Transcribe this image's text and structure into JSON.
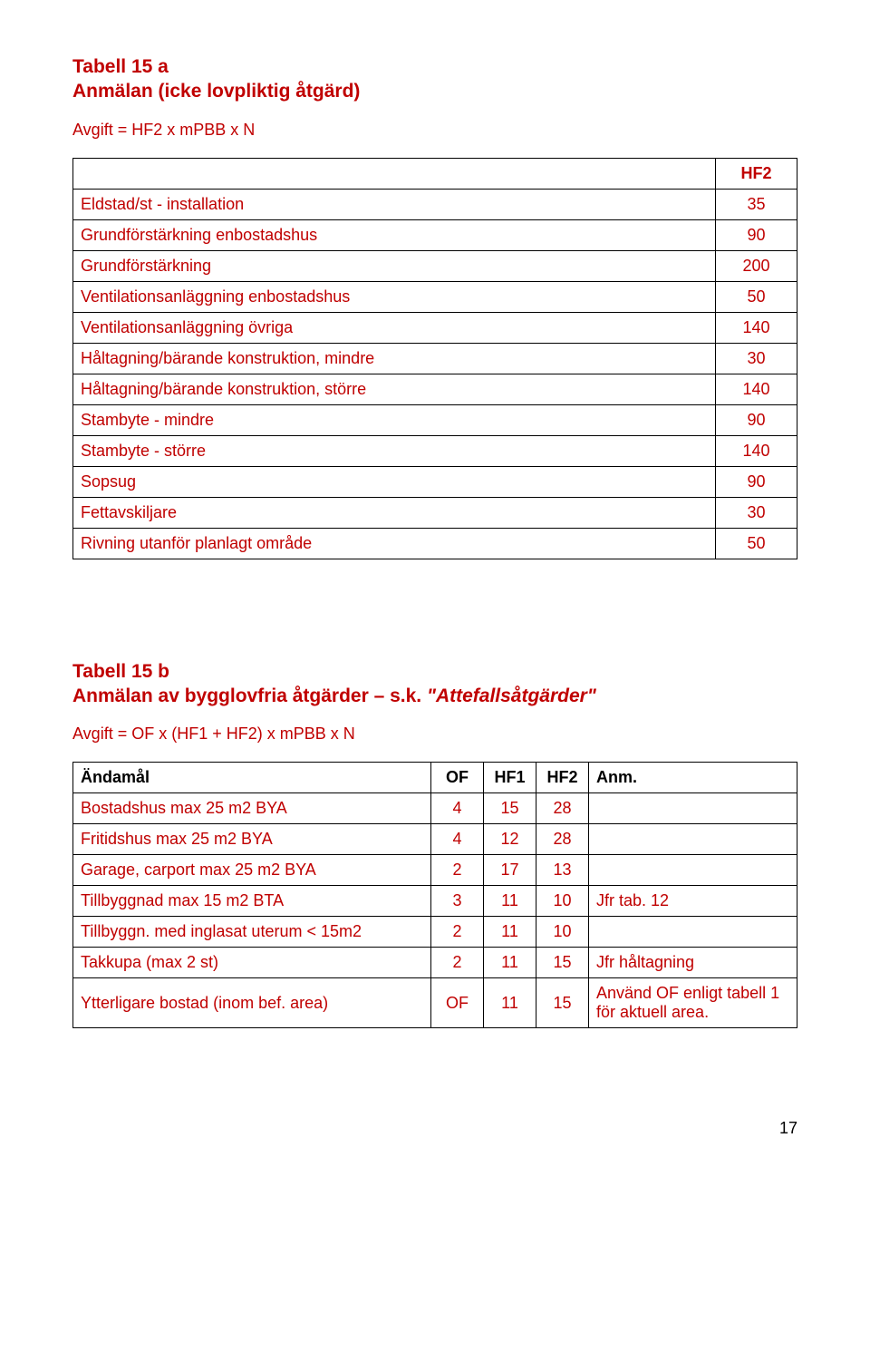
{
  "colors": {
    "accent": "#c00000",
    "text": "#000000",
    "border": "#000000",
    "background": "#ffffff"
  },
  "typography": {
    "font_family": "Arial, Helvetica, sans-serif",
    "heading_fontsize_pt": 16,
    "body_fontsize_pt": 13.5
  },
  "section_a": {
    "title": "Tabell 15 a",
    "subtitle": "Anmälan (icke lovpliktig åtgärd)",
    "formula": "Avgift = HF2 x mPBB x N",
    "table": {
      "header_col2": "HF2",
      "rows": [
        {
          "label": "Eldstad/st - installation",
          "value": "35"
        },
        {
          "label": "Grundförstärkning enbostadshus",
          "value": "90"
        },
        {
          "label": "Grundförstärkning",
          "value": "200"
        },
        {
          "label": "Ventilationsanläggning enbostadshus",
          "value": "50"
        },
        {
          "label": "Ventilationsanläggning övriga",
          "value": "140"
        },
        {
          "label": "Håltagning/bärande konstruktion, mindre",
          "value": "30"
        },
        {
          "label": "Håltagning/bärande konstruktion, större",
          "value": "140"
        },
        {
          "label": "Stambyte - mindre",
          "value": "90"
        },
        {
          "label": "Stambyte - större",
          "value": "140"
        },
        {
          "label": "Sopsug",
          "value": "90"
        },
        {
          "label": "Fettavskiljare",
          "value": "30"
        },
        {
          "label": "Rivning utanför planlagt område",
          "value": "50"
        }
      ]
    }
  },
  "section_b": {
    "title": "Tabell 15 b",
    "subtitle_red": "Anmälan av bygglovfria åtgärder – s.k. ",
    "subtitle_black": "\"Attefallsåtgärder\"",
    "formula": "Avgift = OF x (HF1 + HF2) x mPBB x N",
    "table": {
      "headers": {
        "c1": "Ändamål",
        "c2": "OF",
        "c3": "HF1",
        "c4": "HF2",
        "c5": "Anm."
      },
      "rows": [
        {
          "label": "Bostadshus  max 25 m2 BYA",
          "of": "4",
          "hf1": "15",
          "hf2": "28",
          "anm": ""
        },
        {
          "label": "Fritidshus max 25 m2 BYA",
          "of": "4",
          "hf1": "12",
          "hf2": "28",
          "anm": ""
        },
        {
          "label": "Garage, carport max 25 m2 BYA",
          "of": "2",
          "hf1": "17",
          "hf2": "13",
          "anm": ""
        },
        {
          "label": "Tillbyggnad max 15 m2 BTA",
          "of": "3",
          "hf1": "11",
          "hf2": "10",
          "anm": "Jfr tab. 12"
        },
        {
          "label": "Tillbyggn. med inglasat uterum < 15m2",
          "of": "2",
          "hf1": "11",
          "hf2": "10",
          "anm": ""
        },
        {
          "label": "Takkupa (max 2 st)",
          "of": "2",
          "hf1": "11",
          "hf2": "15",
          "anm": "Jfr håltagning"
        },
        {
          "label": "Ytterligare bostad (inom bef. area)",
          "of": "OF",
          "hf1": "11",
          "hf2": "15",
          "anm": "Använd OF enligt tabell 1 för aktuell area."
        }
      ]
    }
  },
  "page_number": "17"
}
